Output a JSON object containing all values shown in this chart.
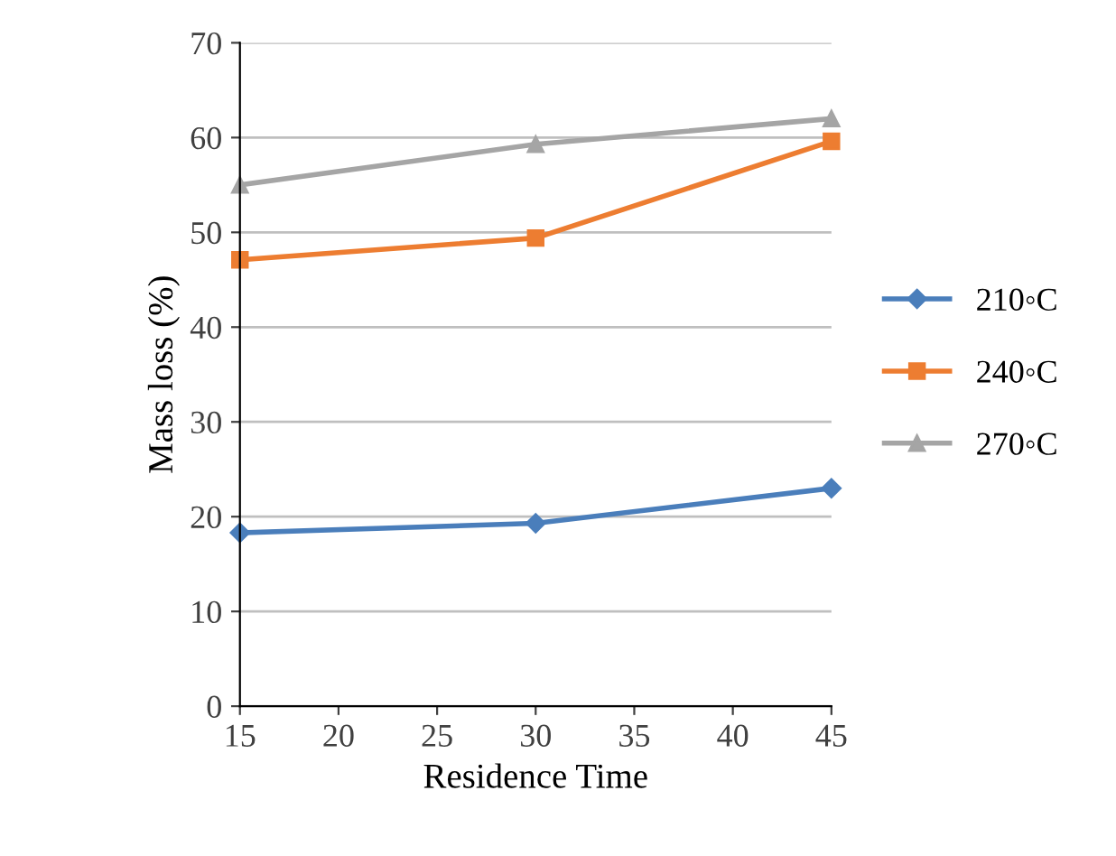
{
  "chart_data": {
    "type": "line",
    "xlabel": "Residence Time",
    "ylabel": "Mass loss (%)",
    "x": [
      15,
      30,
      45
    ],
    "series": [
      {
        "name": "210◦C",
        "color": "#4a7ebb",
        "marker": "diamond",
        "values": [
          18.3,
          19.3,
          23.0
        ]
      },
      {
        "name": "240◦C",
        "color": "#ed7d31",
        "marker": "square",
        "values": [
          47.1,
          49.4,
          59.6
        ]
      },
      {
        "name": "270◦C",
        "color": "#a5a5a5",
        "marker": "triangle",
        "values": [
          55.0,
          59.3,
          62.0
        ]
      }
    ],
    "xlim": [
      15,
      45
    ],
    "xticks": [
      15,
      20,
      25,
      30,
      35,
      40,
      45
    ],
    "ylim": [
      0,
      70
    ],
    "yticks": [
      0,
      10,
      20,
      30,
      40,
      50,
      60,
      70
    ],
    "grid": "y",
    "legend": "right",
    "line_style": "solid"
  }
}
